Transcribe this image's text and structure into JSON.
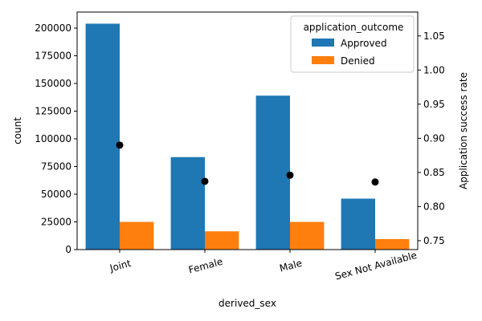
{
  "chart_data": {
    "type": "bar",
    "categories": [
      "Joint",
      "Female",
      "Male",
      "Sex Not Available"
    ],
    "series": [
      {
        "name": "Approved",
        "values": [
          204000,
          83500,
          139000,
          46000
        ],
        "color": "#1f77b4"
      },
      {
        "name": "Denied",
        "values": [
          25000,
          16500,
          25000,
          9500
        ],
        "color": "#ff7f0e"
      }
    ],
    "secondary_series": {
      "type": "scatter",
      "values": [
        0.89,
        0.837,
        0.846,
        0.836
      ],
      "color": "#000000"
    },
    "xlabel": "derived_sex",
    "ylabel": "count",
    "y2label": "Application success rate",
    "ylim": [
      0,
      214500
    ],
    "y2lim": [
      0.737,
      1.085
    ],
    "yticks": [
      0,
      25000,
      50000,
      75000,
      100000,
      125000,
      150000,
      175000,
      200000
    ],
    "y2ticks": [
      0.75,
      0.8,
      0.85,
      0.9,
      0.95,
      1.0,
      1.05
    ],
    "y2tick_labels": [
      "0.75",
      "0.80",
      "0.85",
      "0.90",
      "0.95",
      "1.00",
      "1.05"
    ],
    "legend": {
      "title": "application_outcome",
      "placement": "top-right"
    },
    "grid": false
  }
}
